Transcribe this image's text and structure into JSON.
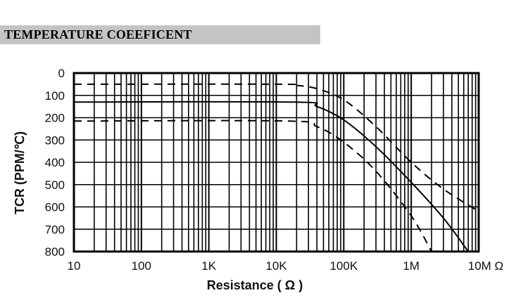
{
  "header": {
    "title": "TEMPERATURE COEEFICENT"
  },
  "chart_data": {
    "type": "line",
    "title": "TEMPERATURE COEEFICENT",
    "xlabel": "Resistance ( Ω )",
    "ylabel": "TCR (PPM/℃)",
    "xscale": "log",
    "xlim": [
      10,
      10000000
    ],
    "ylim": [
      0,
      800
    ],
    "y_inverted": true,
    "grid": true,
    "x_ticks": [
      {
        "value": 10,
        "label": "10"
      },
      {
        "value": 100,
        "label": "100"
      },
      {
        "value": 1000,
        "label": "1K"
      },
      {
        "value": 10000,
        "label": "10K"
      },
      {
        "value": 100000,
        "label": "100K"
      },
      {
        "value": 1000000,
        "label": "1M"
      },
      {
        "value": 10000000,
        "label": "10M Ω"
      }
    ],
    "y_ticks": [
      {
        "value": 0,
        "label": "0"
      },
      {
        "value": 100,
        "label": "100"
      },
      {
        "value": 200,
        "label": "200"
      },
      {
        "value": 300,
        "label": "300"
      },
      {
        "value": 400,
        "label": "400"
      },
      {
        "value": 500,
        "label": "500"
      },
      {
        "value": 600,
        "label": "600"
      },
      {
        "value": 700,
        "label": "700"
      },
      {
        "value": 800,
        "label": "800"
      }
    ],
    "series": [
      {
        "style": "dashed",
        "x": [
          10,
          10000,
          20000,
          40000,
          100000,
          300000,
          1000000,
          3000000,
          10000000
        ],
        "y": [
          50,
          50,
          55,
          70,
          120,
          240,
          400,
          520,
          620
        ]
      },
      {
        "style": "solid",
        "x": [
          10,
          18000,
          40000,
          100000,
          300000,
          1000000,
          3000000,
          7000000
        ],
        "y": [
          130,
          130,
          150,
          210,
          330,
          490,
          650,
          800
        ]
      },
      {
        "style": "dashed",
        "x": [
          10,
          15000,
          40000,
          100000,
          300000,
          1000000,
          2000000
        ],
        "y": [
          215,
          215,
          240,
          310,
          440,
          640,
          800
        ]
      }
    ]
  }
}
